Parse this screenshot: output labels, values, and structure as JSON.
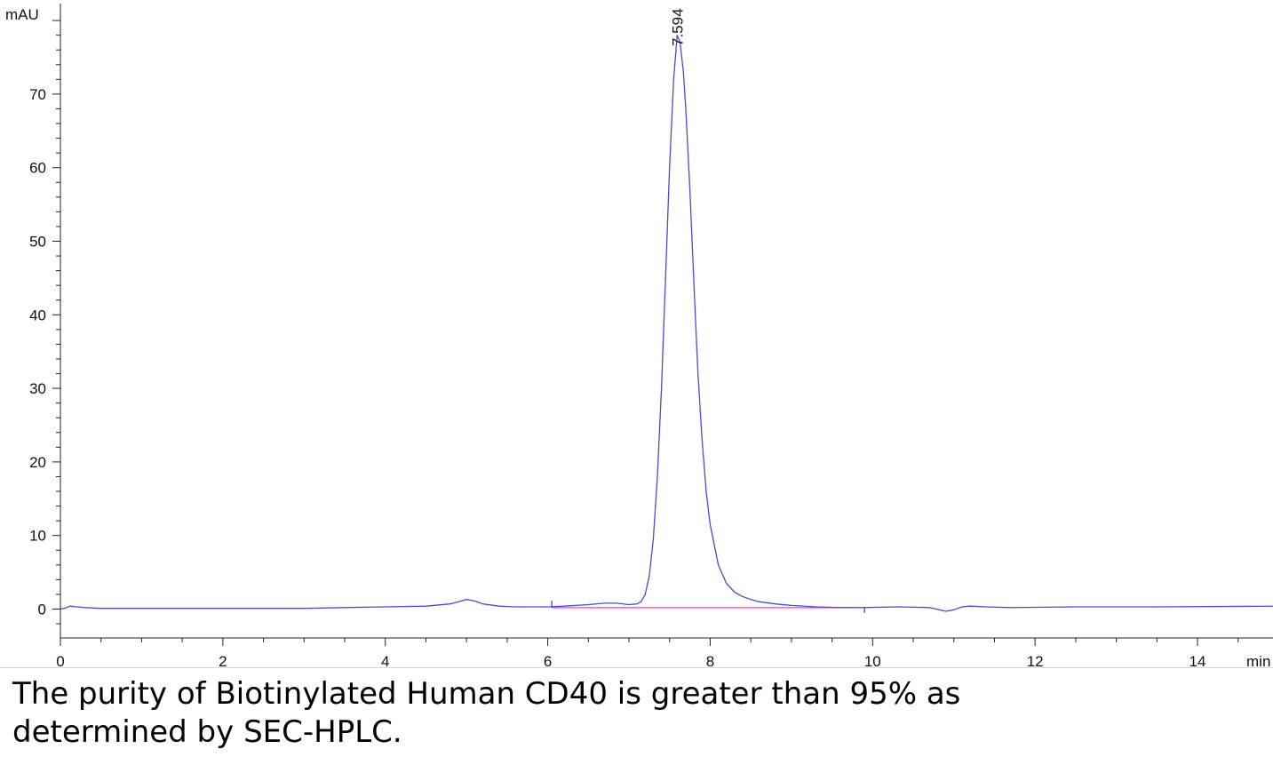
{
  "chart_data": {
    "type": "line",
    "xlabel": "min",
    "ylabel": "mAU",
    "xlim": [
      0,
      15
    ],
    "ylim": [
      -4,
      82
    ],
    "x_ticks": [
      0,
      2,
      4,
      6,
      8,
      10,
      12,
      14
    ],
    "y_ticks": [
      0,
      10,
      20,
      30,
      40,
      50,
      60,
      70
    ],
    "peak_annotations": [
      {
        "x": 7.594,
        "label": "7.594"
      }
    ],
    "baseline": {
      "x_start": 6.05,
      "x_end": 9.8,
      "y": 0.2,
      "color": "#ff33cc"
    },
    "series": [
      {
        "color": "#4a4ad6",
        "x": [
          0,
          0.05,
          0.12,
          0.2,
          0.3,
          0.5,
          1,
          2,
          3,
          3.5,
          4,
          4.5,
          4.8,
          4.9,
          5.0,
          5.1,
          5.2,
          5.4,
          5.6,
          5.8,
          6.0,
          6.2,
          6.5,
          6.7,
          6.85,
          7.0,
          7.1,
          7.15,
          7.2,
          7.25,
          7.3,
          7.35,
          7.4,
          7.45,
          7.5,
          7.55,
          7.594,
          7.63,
          7.67,
          7.7,
          7.75,
          7.8,
          7.85,
          7.9,
          7.95,
          8.0,
          8.1,
          8.2,
          8.3,
          8.4,
          8.5,
          8.6,
          8.8,
          9.0,
          9.3,
          9.6,
          9.9,
          10.3,
          10.7,
          10.9,
          11.0,
          11.1,
          11.2,
          11.4,
          11.7,
          12.5,
          13.5,
          15
        ],
        "y": [
          0,
          0.1,
          0.4,
          0.3,
          0.2,
          0.1,
          0.1,
          0.1,
          0.1,
          0.2,
          0.3,
          0.4,
          0.7,
          1.0,
          1.3,
          1.1,
          0.7,
          0.4,
          0.3,
          0.3,
          0.3,
          0.4,
          0.6,
          0.8,
          0.8,
          0.6,
          0.7,
          1.0,
          2.0,
          4.5,
          9.5,
          18.0,
          30.0,
          45.0,
          60.0,
          72.0,
          78.0,
          77.0,
          73.0,
          68.0,
          57.0,
          44.0,
          32.0,
          23.0,
          16.0,
          11.5,
          6.0,
          3.5,
          2.3,
          1.7,
          1.3,
          1.0,
          0.7,
          0.5,
          0.3,
          0.2,
          0.2,
          0.3,
          0.2,
          -0.3,
          -0.1,
          0.3,
          0.4,
          0.3,
          0.2,
          0.3,
          0.3,
          0.4
        ]
      }
    ]
  },
  "caption": "The purity of Biotinylated Human CD40 is greater than 95% as\ndetermined by SEC-HPLC."
}
